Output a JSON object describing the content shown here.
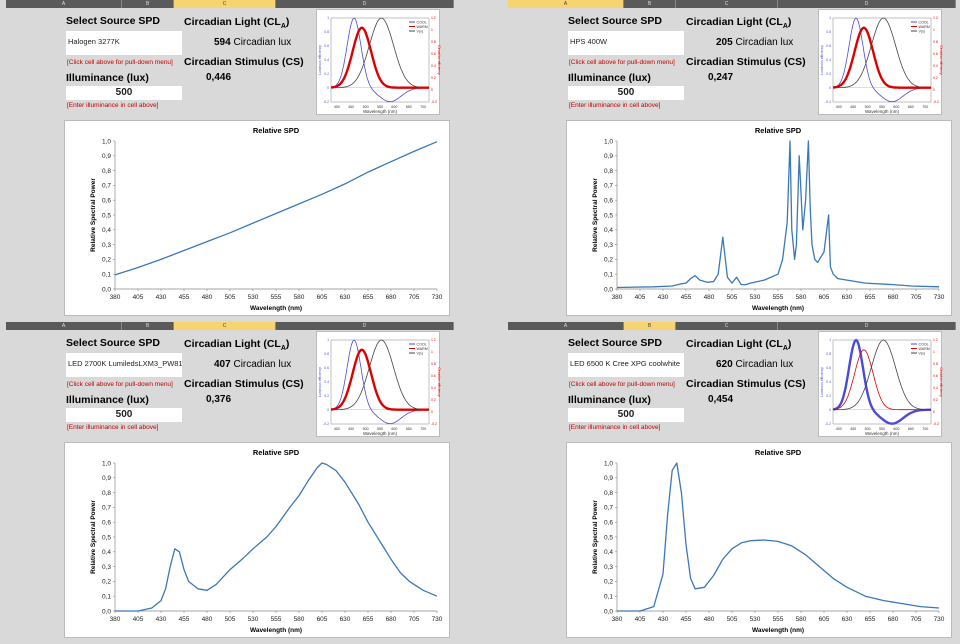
{
  "labels": {
    "select_source": "Select Source SPD",
    "circadian_light": "Circadian Light (CL",
    "circadian_light_sub": "A",
    "circadian_light_close": ")",
    "circadian_lux_unit": "Circadian lux",
    "circadian_stimulus": "Circadian Stimulus (CS)",
    "illuminance": "Illuminance (lux)",
    "hint_pulldown": "[Click cell above for pull-down menu]",
    "hint_illum": "[Enter illuminance in cell above]"
  },
  "column_headers": [
    "A",
    "B",
    "C",
    "D"
  ],
  "mini_chart": {
    "legend": [
      "COOL",
      "WARM",
      "V(λ)"
    ],
    "xlabel": "Wavelength (nm)",
    "x_ticks": [
      "400",
      "450",
      "500",
      "550",
      "600",
      "650",
      "700"
    ],
    "left_ticks": [
      "1",
      "0.8",
      "0.6",
      "0.4",
      "0.2",
      "0",
      "-0.2"
    ],
    "right_ticks": [
      "1.2",
      "1",
      "0.8",
      "0.6",
      "0.4",
      "0.2",
      "0",
      "-0.2"
    ],
    "left_label": "Luminous efficiency",
    "right_label": "Circadian efficiency",
    "colors": {
      "cool": "#4a4adc",
      "warm": "#dd0000",
      "vlambda": "#444444"
    }
  },
  "panels": [
    {
      "selected_column": "C",
      "source": "Halogen 3277K",
      "cl_value": "594",
      "cs_value": "0,446",
      "illuminance": "500",
      "highlight": "warm",
      "chart_data": {
        "type": "line",
        "title": "Relative SPD",
        "xlabel": "Wavelength (nm)",
        "ylabel": "Relative Spectral Power",
        "xlim": [
          380,
          730
        ],
        "ylim": [
          0,
          1
        ],
        "x_ticks": [
          "380",
          "405",
          "430",
          "455",
          "480",
          "505",
          "530",
          "555",
          "580",
          "605",
          "630",
          "655",
          "680",
          "705",
          "730"
        ],
        "y_ticks": [
          "0,0",
          "0,1",
          "0,2",
          "0,3",
          "0,4",
          "0,5",
          "0,6",
          "0,7",
          "0,8",
          "0,9",
          "1,0"
        ],
        "color": "#3a78b8",
        "x": [
          380,
          405,
          430,
          455,
          480,
          505,
          530,
          555,
          580,
          605,
          630,
          655,
          680,
          705,
          730
        ],
        "y": [
          0.095,
          0.145,
          0.2,
          0.26,
          0.32,
          0.38,
          0.445,
          0.51,
          0.575,
          0.64,
          0.71,
          0.79,
          0.86,
          0.93,
          0.995
        ]
      }
    },
    {
      "selected_column": "A",
      "source": "HPS 400W",
      "cl_value": "205",
      "cs_value": "0,247",
      "illuminance": "500",
      "highlight": "warm",
      "chart_data": {
        "type": "line",
        "title": "Relative SPD",
        "xlabel": "Wavelength (nm)",
        "ylabel": "Relative Spectral Power",
        "xlim": [
          380,
          730
        ],
        "ylim": [
          0,
          1
        ],
        "x_ticks": [
          "380",
          "405",
          "430",
          "455",
          "480",
          "505",
          "530",
          "555",
          "580",
          "605",
          "630",
          "655",
          "680",
          "705",
          "730"
        ],
        "y_ticks": [
          "0,0",
          "0,1",
          "0,2",
          "0,3",
          "0,4",
          "0,5",
          "0,6",
          "0,7",
          "0,8",
          "0,9",
          "1,0"
        ],
        "color": "#3a78b8",
        "x": [
          380,
          420,
          440,
          450,
          455,
          460,
          465,
          470,
          478,
          485,
          490,
          495,
          500,
          505,
          510,
          515,
          520,
          525,
          540,
          555,
          560,
          565,
          568,
          570,
          573,
          575,
          578,
          582,
          585,
          588,
          590,
          592,
          595,
          598,
          600,
          605,
          610,
          612,
          615,
          620,
          630,
          650,
          680,
          700,
          730
        ],
        "y": [
          0.01,
          0.015,
          0.02,
          0.035,
          0.04,
          0.07,
          0.09,
          0.06,
          0.045,
          0.05,
          0.1,
          0.35,
          0.08,
          0.04,
          0.08,
          0.03,
          0.03,
          0.04,
          0.06,
          0.1,
          0.2,
          0.45,
          1.0,
          0.4,
          0.2,
          0.3,
          0.9,
          0.4,
          0.6,
          1.0,
          0.55,
          0.3,
          0.2,
          0.18,
          0.2,
          0.25,
          0.5,
          0.15,
          0.1,
          0.07,
          0.06,
          0.04,
          0.03,
          0.02,
          0.015
        ]
      }
    },
    {
      "selected_column": "C",
      "source": "LED 2700K LumiledsLXM3_PW81",
      "cl_value": "407",
      "cs_value": "0,376",
      "illuminance": "500",
      "highlight": "warm",
      "chart_data": {
        "type": "line",
        "title": "Relative SPD",
        "xlabel": "Wavelength (nm)",
        "ylabel": "Relative Spectral Power",
        "xlim": [
          380,
          730
        ],
        "ylim": [
          0,
          1
        ],
        "x_ticks": [
          "380",
          "405",
          "430",
          "455",
          "480",
          "505",
          "530",
          "555",
          "580",
          "605",
          "630",
          "655",
          "680",
          "705",
          "730"
        ],
        "y_ticks": [
          "0,0",
          "0,1",
          "0,2",
          "0,3",
          "0,4",
          "0,5",
          "0,6",
          "0,7",
          "0,8",
          "0,9",
          "1,0"
        ],
        "color": "#3a78b8",
        "x": [
          380,
          405,
          420,
          430,
          435,
          440,
          445,
          450,
          455,
          460,
          470,
          480,
          490,
          505,
          520,
          530,
          545,
          555,
          570,
          580,
          590,
          600,
          605,
          610,
          620,
          630,
          645,
          655,
          670,
          680,
          690,
          700,
          715,
          730
        ],
        "y": [
          0,
          0,
          0.02,
          0.07,
          0.15,
          0.3,
          0.42,
          0.4,
          0.28,
          0.2,
          0.15,
          0.14,
          0.18,
          0.28,
          0.36,
          0.42,
          0.5,
          0.57,
          0.7,
          0.78,
          0.88,
          0.97,
          1.0,
          0.99,
          0.95,
          0.87,
          0.72,
          0.6,
          0.45,
          0.35,
          0.26,
          0.2,
          0.14,
          0.1
        ]
      }
    },
    {
      "selected_column": "B",
      "source": "LED 6500 K Cree XPG coolwhite",
      "cl_value": "620",
      "cs_value": "0,454",
      "illuminance": "500",
      "highlight": "cool",
      "chart_data": {
        "type": "line",
        "title": "Relative SPD",
        "xlabel": "Wavelength (nm)",
        "ylabel": "Relative Spectral Power",
        "xlim": [
          380,
          730
        ],
        "ylim": [
          0,
          1
        ],
        "x_ticks": [
          "380",
          "405",
          "430",
          "455",
          "480",
          "505",
          "530",
          "555",
          "580",
          "605",
          "630",
          "655",
          "680",
          "705",
          "730"
        ],
        "y_ticks": [
          "0,0",
          "0,1",
          "0,2",
          "0,3",
          "0,4",
          "0,5",
          "0,6",
          "0,7",
          "0,8",
          "0,9",
          "1,0"
        ],
        "color": "#3a78b8",
        "x": [
          380,
          405,
          420,
          430,
          435,
          440,
          445,
          450,
          455,
          460,
          465,
          475,
          485,
          495,
          505,
          515,
          525,
          540,
          555,
          570,
          585,
          600,
          615,
          630,
          650,
          670,
          690,
          710,
          730
        ],
        "y": [
          0,
          0,
          0.03,
          0.25,
          0.65,
          0.95,
          1.0,
          0.8,
          0.45,
          0.22,
          0.15,
          0.16,
          0.24,
          0.35,
          0.42,
          0.46,
          0.475,
          0.48,
          0.47,
          0.44,
          0.38,
          0.3,
          0.22,
          0.16,
          0.1,
          0.07,
          0.05,
          0.03,
          0.02
        ]
      }
    }
  ]
}
